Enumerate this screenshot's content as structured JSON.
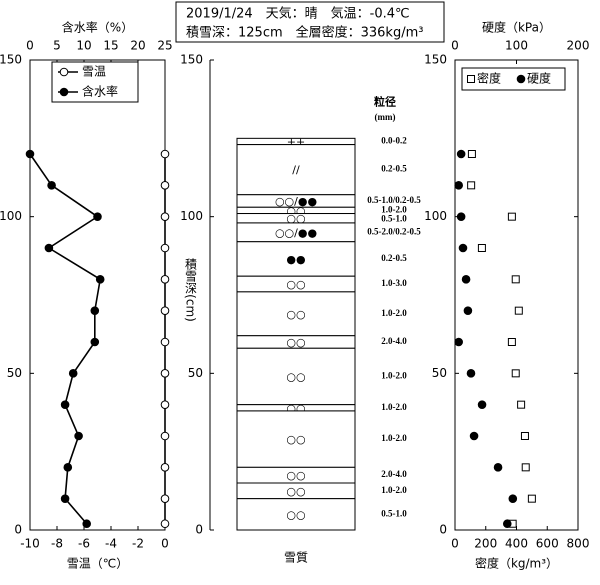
{
  "header": {
    "line1": "2019/1/24　天気：晴　気温：-0.4℃",
    "line2": "積雪深：125cm　全層密度：336kg/m³"
  },
  "chart_data": [
    {
      "type": "profile",
      "legend": "vertical",
      "xlabel": "雪温（℃）",
      "xlim": [
        -10,
        0
      ],
      "xticks": [
        -10,
        -8,
        -6,
        -4,
        -2,
        0
      ],
      "x2label": "含水率（%）",
      "x2lim": [
        0,
        25
      ],
      "x2ticks": [
        0,
        5,
        10,
        15,
        20,
        25
      ],
      "ylim": [
        0,
        150
      ],
      "yticks": [
        0,
        50,
        100,
        150
      ],
      "depth": [
        120,
        110,
        100,
        90,
        80,
        70,
        60,
        50,
        40,
        30,
        20,
        10,
        2
      ],
      "series": [
        {
          "name": "雪温",
          "axis": "x",
          "marker": "circle-open",
          "line": true,
          "color": "#000000",
          "values": [
            0,
            0,
            0,
            0,
            0,
            0,
            0,
            0,
            0,
            0,
            0,
            0,
            0
          ]
        },
        {
          "name": "含水率",
          "axis": "x2",
          "marker": "circle",
          "line": true,
          "color": "#000000",
          "values": [
            0,
            4,
            12.5,
            3.5,
            13,
            12,
            12,
            8,
            6.5,
            9,
            7,
            6.5,
            10.5
          ]
        }
      ]
    },
    {
      "type": "layers",
      "xlabel": "雪質",
      "ylabel": "積雪深(cm)",
      "grain_title": "粒径",
      "grain_unit": "(mm)",
      "ylim": [
        0,
        150
      ],
      "yticks": [
        0,
        50,
        100,
        150
      ],
      "layers": [
        {
          "top": 125,
          "bottom": 123,
          "symbol": "++",
          "grain": "0.0-0.2"
        },
        {
          "top": 123,
          "bottom": 107,
          "symbol": "//",
          "grain": "0.2-0.5"
        },
        {
          "top": 107,
          "bottom": 103,
          "symbol": "○○/●●",
          "grain": "0.5-1.0/0.2-0.5"
        },
        {
          "top": 103,
          "bottom": 101,
          "symbol": "○○",
          "grain": "1.0-2.0"
        },
        {
          "top": 101,
          "bottom": 98,
          "symbol": "○○",
          "grain": "0.5-1.0"
        },
        {
          "top": 98,
          "bottom": 92,
          "symbol": "○○/●●",
          "grain": "0.5-2.0/0.2-0.5"
        },
        {
          "top": 92,
          "bottom": 81,
          "symbol": "●●",
          "grain": "0.2-0.5"
        },
        {
          "top": 81,
          "bottom": 76,
          "symbol": "○○",
          "grain": "1.0-3.0"
        },
        {
          "top": 76,
          "bottom": 62,
          "symbol": "○○",
          "grain": "1.0-2.0"
        },
        {
          "top": 62,
          "bottom": 58,
          "symbol": "○○",
          "grain": "2.0-4.0"
        },
        {
          "top": 58,
          "bottom": 40,
          "symbol": "○○",
          "grain": "1.0-2.0"
        },
        {
          "top": 40,
          "bottom": 38,
          "symbol": "○○",
          "grain": "1.0-2.0"
        },
        {
          "top": 38,
          "bottom": 20,
          "symbol": "○○",
          "grain": "1.0-2.0"
        },
        {
          "top": 20,
          "bottom": 15,
          "symbol": "○○",
          "grain": "2.0-4.0"
        },
        {
          "top": 15,
          "bottom": 10,
          "symbol": "○○",
          "grain": "1.0-2.0"
        },
        {
          "top": 10,
          "bottom": 0,
          "symbol": "○○",
          "grain": "0.5-1.0"
        }
      ]
    },
    {
      "type": "profile",
      "legend": "horizontal",
      "xlabel": "密度（kg/m³）",
      "xlim": [
        0,
        800
      ],
      "xticks": [
        0,
        200,
        400,
        600,
        800
      ],
      "x2label": "硬度（kPa）",
      "x2lim": [
        0,
        200
      ],
      "x2ticks": [
        0,
        100,
        200
      ],
      "ylim": [
        0,
        150
      ],
      "yticks": [
        0,
        50,
        100,
        150
      ],
      "depth": [
        120,
        110,
        100,
        90,
        80,
        70,
        60,
        50,
        40,
        30,
        20,
        10,
        2
      ],
      "series": [
        {
          "name": "密度",
          "axis": "x",
          "marker": "square-open",
          "line": false,
          "color": "#000000",
          "values": [
            110,
            105,
            370,
            175,
            395,
            415,
            370,
            395,
            430,
            455,
            460,
            500,
            375
          ]
        },
        {
          "name": "硬度",
          "axis": "x2",
          "marker": "circle",
          "line": false,
          "color": "#000000",
          "values": [
            10,
            6,
            10,
            13,
            18,
            21,
            6,
            26,
            44,
            31,
            70,
            94,
            85
          ]
        }
      ]
    }
  ]
}
